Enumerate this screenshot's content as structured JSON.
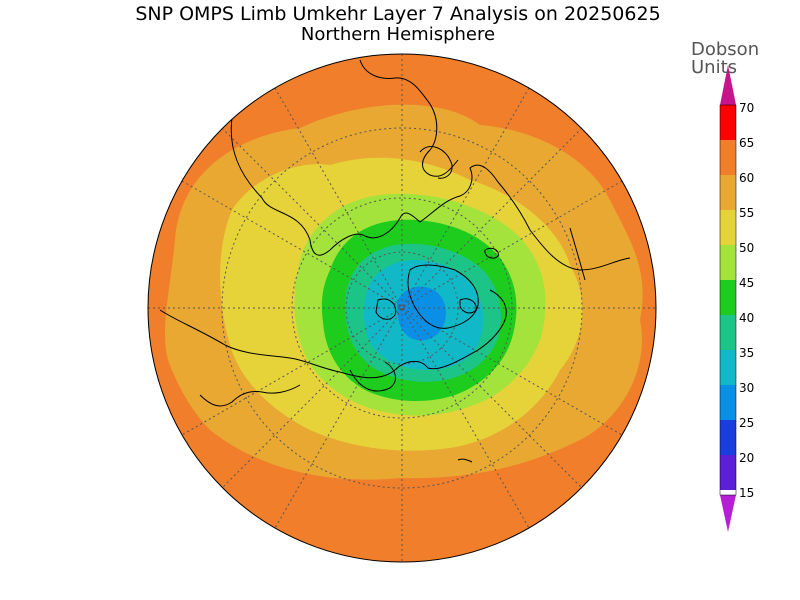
{
  "title": "SNP OMPS Limb Umkehr Layer 7 Analysis on 20250625",
  "subtitle": "Northern Hemisphere",
  "colorbar": {
    "unit_line1": "Dobson",
    "unit_line2": "Units",
    "ticks": [
      "70",
      "65",
      "60",
      "55",
      "50",
      "45",
      "40",
      "35",
      "30",
      "25",
      "20",
      "15"
    ],
    "colors": [
      "#ff0000",
      "#f07e2a",
      "#e8a832",
      "#e6d33a",
      "#a3e33b",
      "#1dcc1d",
      "#1cc587",
      "#10b8c8",
      "#0a8fe6",
      "#1a3ddd",
      "#5a1fd6",
      "#8a18d0"
    ],
    "top_arrow_color": "#c8148a",
    "bottom_arrow_color": "#b51fd6"
  },
  "map": {
    "projection": "north-polar-stereographic",
    "colors": {
      "orange": "#f07e2a",
      "light_orange": "#e8a832",
      "yellow": "#e6d33a",
      "light_green": "#a3e33b",
      "green": "#1dcc1d",
      "teal": "#1cc587",
      "cyan": "#10b8c8",
      "blue": "#0a8fe6"
    }
  }
}
